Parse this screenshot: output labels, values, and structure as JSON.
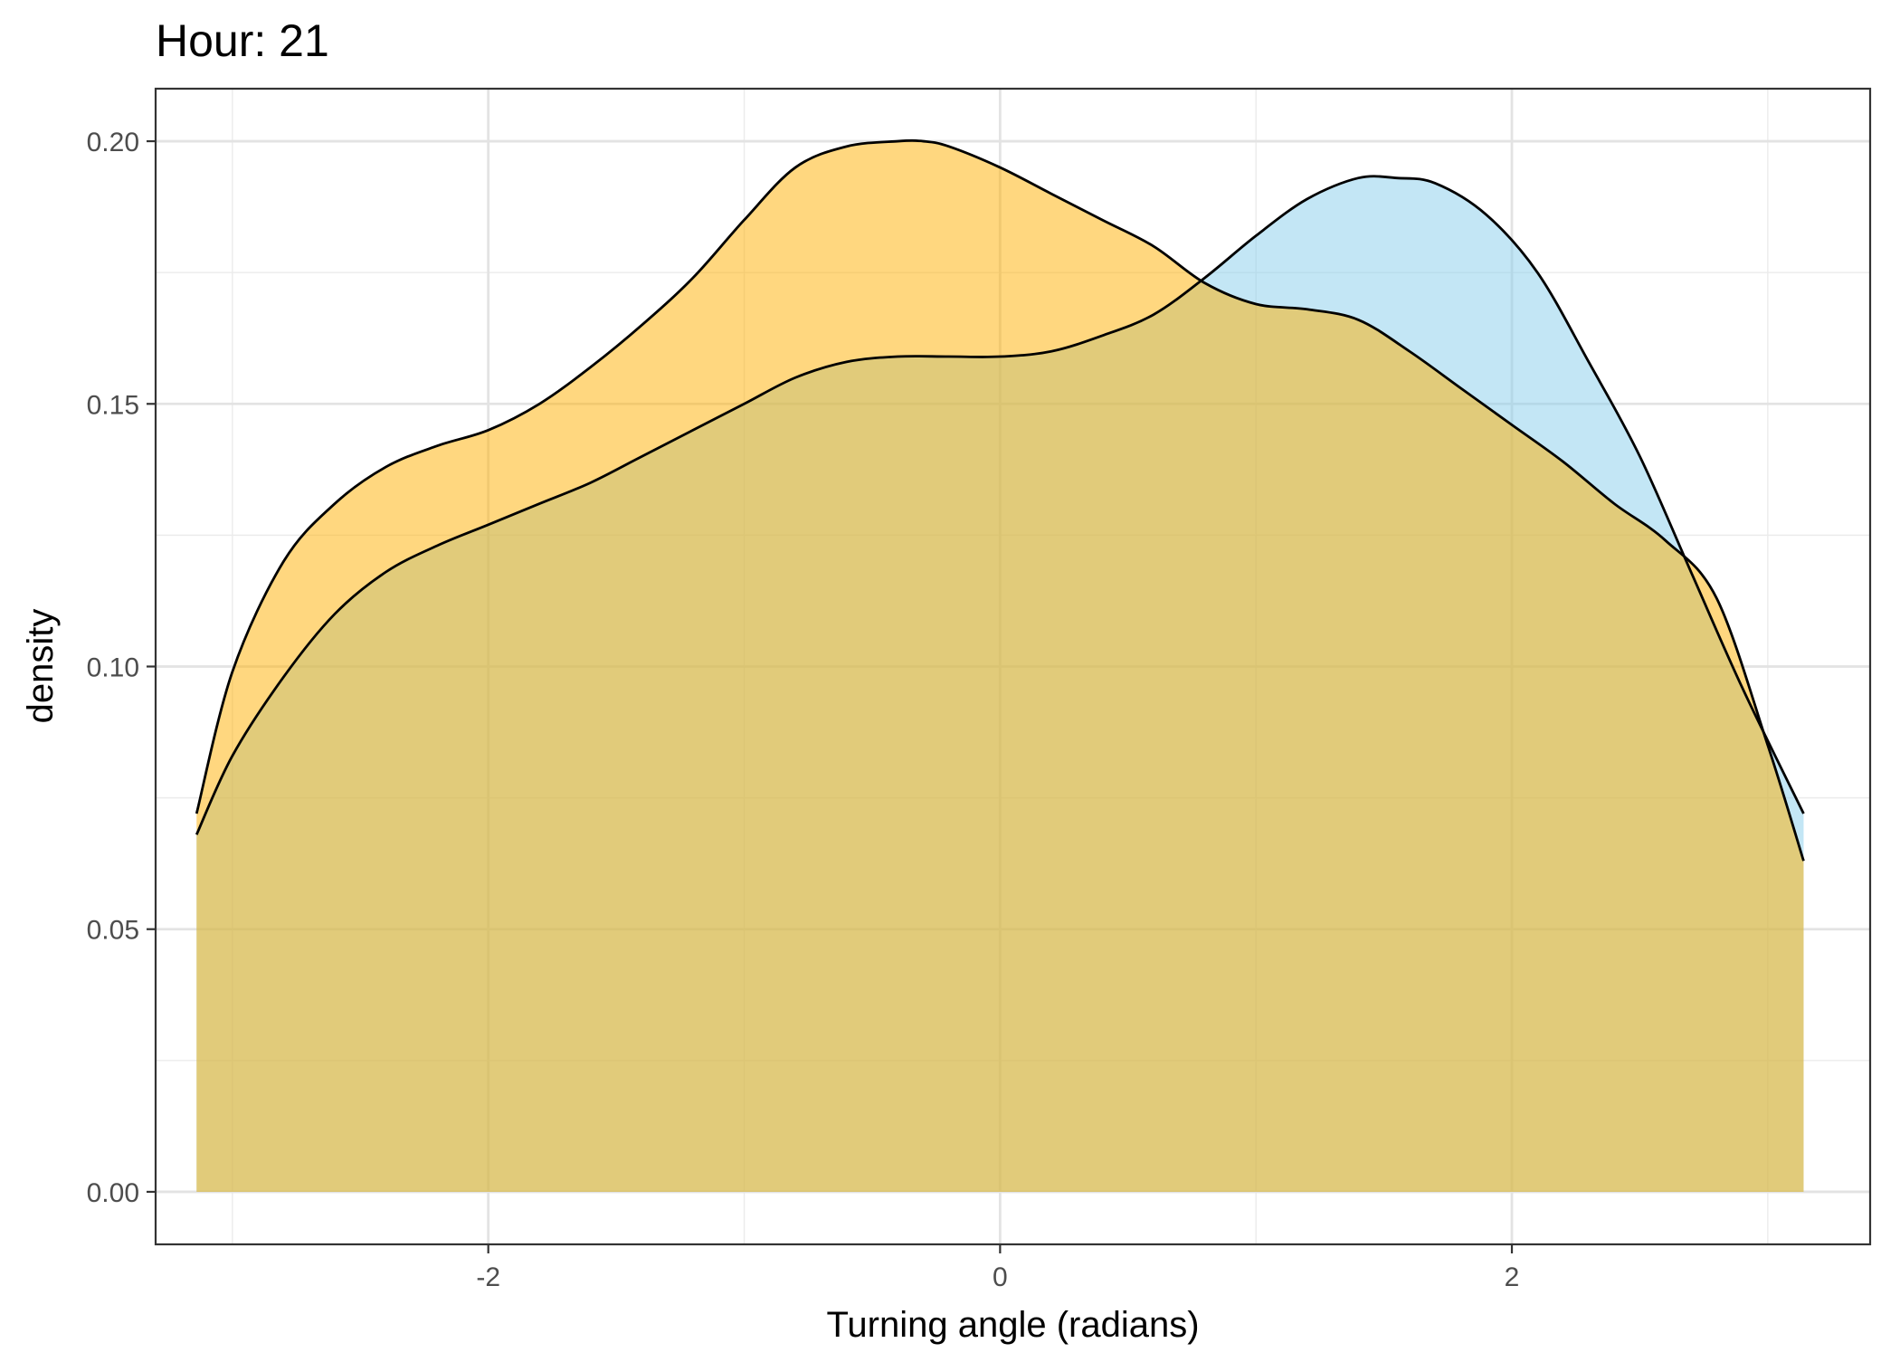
{
  "chart_data": {
    "type": "area",
    "title": "Hour: 21",
    "xlabel": "Turning angle (radians)",
    "ylabel": "density",
    "xlim": [
      -3.3,
      3.4
    ],
    "ylim": [
      -0.01,
      0.21
    ],
    "x_ticks": [
      -2,
      0,
      2
    ],
    "x_tick_labels": [
      "-2",
      "0",
      "2"
    ],
    "y_ticks": [
      0.0,
      0.05,
      0.1,
      0.15,
      0.2
    ],
    "y_tick_labels": [
      "0.00",
      "0.05",
      "0.10",
      "0.15",
      "0.20"
    ],
    "grid": true,
    "legend": "none",
    "series": [
      {
        "color": "#87CEEB",
        "opacity": 0.5,
        "x": [
          -3.14,
          -3.0,
          -2.8,
          -2.6,
          -2.4,
          -2.2,
          -2.0,
          -1.8,
          -1.6,
          -1.4,
          -1.2,
          -1.0,
          -0.8,
          -0.6,
          -0.4,
          -0.2,
          0.0,
          0.2,
          0.4,
          0.6,
          0.8,
          1.0,
          1.2,
          1.4,
          1.55,
          1.7,
          1.9,
          2.1,
          2.3,
          2.5,
          2.7,
          2.9,
          3.14
        ],
        "y": [
          0.068,
          0.083,
          0.098,
          0.11,
          0.118,
          0.123,
          0.127,
          0.131,
          0.135,
          0.14,
          0.145,
          0.15,
          0.155,
          0.158,
          0.159,
          0.159,
          0.159,
          0.16,
          0.163,
          0.167,
          0.174,
          0.182,
          0.189,
          0.193,
          0.193,
          0.192,
          0.186,
          0.175,
          0.158,
          0.14,
          0.118,
          0.096,
          0.072
        ]
      },
      {
        "color": "#FFB000",
        "opacity": 0.5,
        "x": [
          -3.14,
          -3.0,
          -2.8,
          -2.6,
          -2.4,
          -2.2,
          -2.0,
          -1.8,
          -1.6,
          -1.4,
          -1.2,
          -1.0,
          -0.8,
          -0.6,
          -0.4,
          -0.3,
          -0.2,
          0.0,
          0.2,
          0.4,
          0.6,
          0.8,
          1.0,
          1.2,
          1.4,
          1.6,
          1.8,
          2.0,
          2.2,
          2.4,
          2.6,
          2.8,
          3.0,
          3.14
        ],
        "y": [
          0.072,
          0.099,
          0.12,
          0.131,
          0.138,
          0.142,
          0.145,
          0.15,
          0.157,
          0.165,
          0.174,
          0.185,
          0.195,
          0.199,
          0.2,
          0.2,
          0.199,
          0.195,
          0.19,
          0.185,
          0.18,
          0.173,
          0.169,
          0.168,
          0.166,
          0.16,
          0.153,
          0.146,
          0.139,
          0.131,
          0.124,
          0.113,
          0.085,
          0.063
        ]
      }
    ]
  }
}
